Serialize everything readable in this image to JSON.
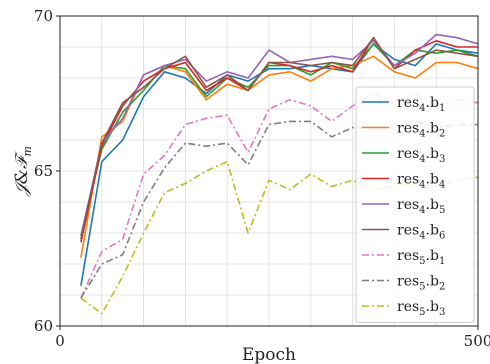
{
  "chart_data": {
    "type": "line",
    "xlabel": "Epoch",
    "ylabel": "𝒥&ℱ",
    "ylabel_sub": "m",
    "xlim": [
      0,
      500
    ],
    "ylim": [
      60,
      70
    ],
    "xticks": [
      0,
      500
    ],
    "yticks": [
      60,
      65,
      70
    ],
    "grid": true,
    "legend_position": "right",
    "x": [
      25,
      50,
      75,
      100,
      125,
      150,
      175,
      200,
      225,
      250,
      275,
      300,
      325,
      350,
      375,
      400,
      425,
      450,
      475,
      500
    ],
    "series": [
      {
        "name": "res4.b1",
        "base": "res",
        "sub": "4",
        "suffix": ".b",
        "sub2": "1",
        "color": "#1f77b4",
        "dash": "solid",
        "values": [
          61.3,
          65.3,
          66.0,
          67.4,
          68.2,
          68.0,
          67.5,
          68.1,
          67.9,
          68.3,
          68.3,
          68.4,
          68.3,
          68.2,
          69.1,
          68.6,
          68.4,
          69.1,
          68.9,
          68.8
        ]
      },
      {
        "name": "res4.b2",
        "base": "res",
        "sub": "4",
        "suffix": ".b",
        "sub2": "2",
        "color": "#ff7f0e",
        "dash": "solid",
        "values": [
          62.2,
          66.1,
          66.6,
          68.1,
          68.4,
          68.2,
          67.3,
          67.8,
          67.6,
          68.1,
          68.2,
          67.9,
          68.3,
          68.4,
          68.7,
          68.2,
          68.0,
          68.5,
          68.5,
          68.3
        ]
      },
      {
        "name": "res4.b3",
        "base": "res",
        "sub": "4",
        "suffix": ".b",
        "sub2": "3",
        "color": "#2ca02c",
        "dash": "solid",
        "values": [
          62.9,
          65.7,
          66.9,
          67.6,
          68.4,
          68.3,
          67.4,
          68.0,
          67.7,
          68.4,
          68.4,
          68.1,
          68.5,
          68.3,
          69.1,
          68.4,
          68.9,
          68.8,
          68.9,
          68.7
        ]
      },
      {
        "name": "res4.b4",
        "base": "res",
        "sub": "4",
        "suffix": ".b",
        "sub2": "4",
        "color": "#d62728",
        "dash": "solid",
        "values": [
          62.7,
          65.8,
          67.1,
          67.9,
          68.3,
          68.5,
          67.6,
          68.0,
          67.6,
          68.5,
          68.4,
          68.2,
          68.4,
          68.2,
          69.3,
          68.3,
          68.9,
          69.2,
          69.0,
          69.0
        ]
      },
      {
        "name": "res4.b5",
        "base": "res",
        "sub": "4",
        "suffix": ".b",
        "sub2": "5",
        "color": "#9467bd",
        "dash": "solid",
        "values": [
          62.9,
          65.9,
          66.7,
          68.1,
          68.4,
          68.6,
          67.9,
          68.2,
          68.0,
          68.9,
          68.5,
          68.6,
          68.7,
          68.6,
          69.2,
          68.4,
          68.8,
          69.4,
          69.3,
          69.1
        ]
      },
      {
        "name": "res4.b6",
        "base": "res",
        "sub": "4",
        "suffix": ".b",
        "sub2": "6",
        "color": "#8c564b",
        "dash": "solid",
        "values": [
          62.8,
          65.9,
          67.2,
          67.7,
          68.3,
          68.7,
          67.7,
          68.1,
          67.6,
          68.5,
          68.5,
          68.4,
          68.5,
          68.4,
          69.3,
          68.3,
          68.6,
          68.9,
          68.8,
          68.7
        ]
      },
      {
        "name": "res5.b1",
        "base": "res",
        "sub": "5",
        "suffix": ".b",
        "sub2": "1",
        "color": "#e377c2",
        "dash": "dashdot",
        "values": [
          60.9,
          62.4,
          62.8,
          64.9,
          65.5,
          66.5,
          66.7,
          66.8,
          65.6,
          67.0,
          67.3,
          67.1,
          66.6,
          67.1,
          67.5,
          67.2,
          67.5,
          67.1,
          67.3,
          67.2
        ]
      },
      {
        "name": "res5.b2",
        "base": "res",
        "sub": "5",
        "suffix": ".b",
        "sub2": "2",
        "color": "#7f7f7f",
        "dash": "dashdot",
        "values": [
          60.9,
          62.0,
          62.3,
          64.0,
          65.1,
          65.9,
          65.8,
          65.9,
          65.2,
          66.5,
          66.6,
          66.6,
          66.1,
          66.4,
          66.4,
          66.4,
          66.6,
          66.4,
          66.5,
          66.5
        ]
      },
      {
        "name": "res5.b3",
        "base": "res",
        "sub": "5",
        "suffix": ".b",
        "sub2": "3",
        "color": "#bcbd22",
        "dash": "dashdot",
        "values": [
          60.9,
          60.4,
          61.6,
          63.0,
          64.3,
          64.6,
          65.0,
          65.3,
          63.0,
          64.7,
          64.4,
          64.9,
          64.5,
          64.7,
          64.4,
          64.5,
          64.6,
          64.5,
          64.7,
          64.8
        ]
      }
    ]
  }
}
